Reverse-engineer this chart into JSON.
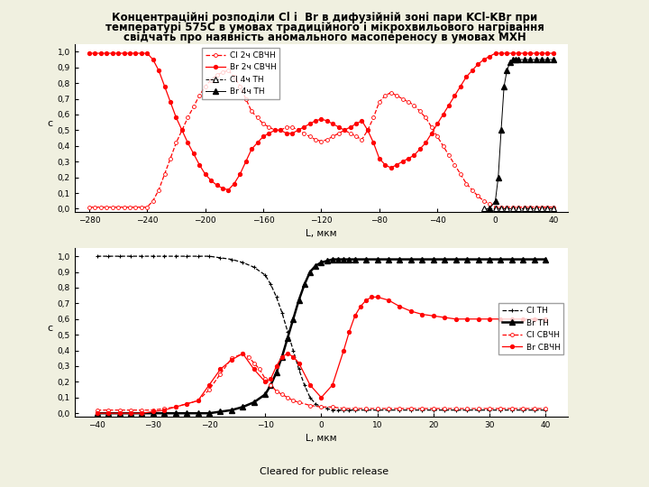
{
  "title_line1": "Концентраційні розподіли Cl і  Br в дифузійній зоні пари KCl-KBr при",
  "title_line2": "температурі 575С в умовах традиційного і мікрохвильового нагрівання",
  "title_line3": "свідчать про наявність аномального масопереносу в умовах МХН",
  "background_color": "#f0f0e0",
  "plot_bg": "#ffffff",
  "footer": "Cleared for public release",
  "plot1": {
    "xlabel": "L, мкм",
    "ylabel": "c",
    "xlim": [
      -290,
      50
    ],
    "ylim": [
      -0.02,
      1.05
    ],
    "xticks": [
      -280,
      -240,
      -200,
      -160,
      -120,
      -80,
      -40,
      0,
      40
    ],
    "yticks": [
      0.0,
      0.1,
      0.2,
      0.3,
      0.4,
      0.5,
      0.6,
      0.7,
      0.8,
      0.9,
      1.0
    ],
    "yticklabels": [
      "0,0",
      "0,1",
      "0,2",
      "0,3",
      "0,4",
      "0,5 -",
      "0,6",
      "0,7",
      "0,8",
      "0,9 -",
      "1,0"
    ],
    "cl_svch_x": [
      -280,
      -276,
      -272,
      -268,
      -264,
      -260,
      -256,
      -252,
      -248,
      -244,
      -240,
      -236,
      -232,
      -228,
      -224,
      -220,
      -216,
      -212,
      -208,
      -204,
      -200,
      -196,
      -192,
      -188,
      -184,
      -180,
      -176,
      -172,
      -168,
      -164,
      -160,
      -156,
      -152,
      -148,
      -144,
      -140,
      -136,
      -132,
      -128,
      -124,
      -120,
      -116,
      -112,
      -108,
      -104,
      -100,
      -96,
      -92,
      -88,
      -84,
      -80,
      -76,
      -72,
      -68,
      -64,
      -60,
      -56,
      -52,
      -48,
      -44,
      -40,
      -36,
      -32,
      -28,
      -24,
      -20,
      -16,
      -12,
      -8,
      -4,
      0,
      4,
      8,
      12,
      16,
      20,
      24,
      28,
      32,
      36,
      40
    ],
    "cl_svch_y": [
      0.01,
      0.01,
      0.01,
      0.01,
      0.01,
      0.01,
      0.01,
      0.01,
      0.01,
      0.01,
      0.01,
      0.05,
      0.12,
      0.22,
      0.32,
      0.42,
      0.5,
      0.58,
      0.65,
      0.72,
      0.78,
      0.82,
      0.85,
      0.87,
      0.88,
      0.84,
      0.78,
      0.7,
      0.62,
      0.58,
      0.54,
      0.52,
      0.5,
      0.5,
      0.52,
      0.52,
      0.5,
      0.48,
      0.46,
      0.44,
      0.43,
      0.44,
      0.46,
      0.48,
      0.5,
      0.48,
      0.46,
      0.44,
      0.5,
      0.58,
      0.68,
      0.72,
      0.74,
      0.72,
      0.7,
      0.68,
      0.66,
      0.62,
      0.58,
      0.52,
      0.46,
      0.4,
      0.34,
      0.28,
      0.22,
      0.16,
      0.12,
      0.08,
      0.05,
      0.03,
      0.01,
      0.01,
      0.01,
      0.01,
      0.01,
      0.01,
      0.01,
      0.01,
      0.01,
      0.01,
      0.01
    ],
    "br_svch_x": [
      -280,
      -276,
      -272,
      -268,
      -264,
      -260,
      -256,
      -252,
      -248,
      -244,
      -240,
      -236,
      -232,
      -228,
      -224,
      -220,
      -216,
      -212,
      -208,
      -204,
      -200,
      -196,
      -192,
      -188,
      -184,
      -180,
      -176,
      -172,
      -168,
      -164,
      -160,
      -156,
      -152,
      -148,
      -144,
      -140,
      -136,
      -132,
      -128,
      -124,
      -120,
      -116,
      -112,
      -108,
      -104,
      -100,
      -96,
      -92,
      -88,
      -84,
      -80,
      -76,
      -72,
      -68,
      -64,
      -60,
      -56,
      -52,
      -48,
      -44,
      -40,
      -36,
      -32,
      -28,
      -24,
      -20,
      -16,
      -12,
      -8,
      -4,
      0,
      4,
      8,
      12,
      16,
      20,
      24,
      28,
      32,
      36,
      40
    ],
    "br_svch_y": [
      0.99,
      0.99,
      0.99,
      0.99,
      0.99,
      0.99,
      0.99,
      0.99,
      0.99,
      0.99,
      0.99,
      0.95,
      0.88,
      0.78,
      0.68,
      0.58,
      0.5,
      0.42,
      0.35,
      0.28,
      0.22,
      0.18,
      0.15,
      0.13,
      0.12,
      0.16,
      0.22,
      0.3,
      0.38,
      0.42,
      0.46,
      0.48,
      0.5,
      0.5,
      0.48,
      0.48,
      0.5,
      0.52,
      0.54,
      0.56,
      0.57,
      0.56,
      0.54,
      0.52,
      0.5,
      0.52,
      0.54,
      0.56,
      0.5,
      0.42,
      0.32,
      0.28,
      0.26,
      0.28,
      0.3,
      0.32,
      0.34,
      0.38,
      0.42,
      0.48,
      0.54,
      0.6,
      0.66,
      0.72,
      0.78,
      0.84,
      0.88,
      0.92,
      0.95,
      0.97,
      0.99,
      0.99,
      0.99,
      0.99,
      0.99,
      0.99,
      0.99,
      0.99,
      0.99,
      0.99,
      0.99
    ],
    "cl_th_x": [
      -8,
      -4,
      0,
      4,
      8,
      12,
      16,
      20,
      24,
      28,
      32,
      36,
      40
    ],
    "cl_th_y": [
      0.0,
      0.0,
      0.0,
      0.0,
      0.0,
      0.0,
      0.0,
      0.0,
      0.0,
      0.0,
      0.0,
      0.0,
      0.0
    ],
    "br_th_x": [
      -4,
      0,
      2,
      4,
      6,
      8,
      10,
      12,
      14,
      16,
      20,
      24,
      28,
      32,
      36,
      40
    ],
    "br_th_y": [
      0.0,
      0.05,
      0.2,
      0.5,
      0.78,
      0.88,
      0.93,
      0.95,
      0.95,
      0.95,
      0.95,
      0.95,
      0.95,
      0.95,
      0.95,
      0.95
    ],
    "legend": [
      "Cl 2ч СВЧН",
      "Br 2ч СВЧН",
      "Cl 4ч ТН",
      "Br 4ч ТН"
    ]
  },
  "plot2": {
    "xlabel": "L, мкм",
    "ylabel": "c",
    "xlim": [
      -44,
      44
    ],
    "ylim": [
      -0.02,
      1.05
    ],
    "xticks": [
      -40,
      -30,
      -20,
      -10,
      0,
      10,
      20,
      30,
      40
    ],
    "yticks": [
      0.0,
      0.1,
      0.2,
      0.3,
      0.4,
      0.5,
      0.6,
      0.7,
      0.8,
      0.9,
      1.0
    ],
    "yticklabels": [
      "0,0",
      "0,1",
      "0,2",
      "0,3",
      "0,4",
      "0,5",
      "0,6",
      "0,7",
      "0,8",
      "0,9",
      "1,0"
    ],
    "cl_th_x": [
      -40,
      -38,
      -36,
      -34,
      -32,
      -30,
      -28,
      -26,
      -24,
      -22,
      -20,
      -18,
      -16,
      -14,
      -12,
      -10,
      -9,
      -8,
      -7,
      -6,
      -5,
      -4,
      -3,
      -2,
      -1,
      0,
      1,
      2,
      3,
      4,
      5,
      6,
      8,
      10,
      12,
      14,
      16,
      18,
      20,
      22,
      24,
      26,
      28,
      30,
      32,
      34,
      36,
      38,
      40
    ],
    "cl_th_y": [
      1.0,
      1.0,
      1.0,
      1.0,
      1.0,
      1.0,
      1.0,
      1.0,
      1.0,
      1.0,
      1.0,
      0.99,
      0.98,
      0.96,
      0.93,
      0.88,
      0.82,
      0.74,
      0.64,
      0.52,
      0.4,
      0.28,
      0.18,
      0.1,
      0.06,
      0.04,
      0.03,
      0.02,
      0.02,
      0.02,
      0.02,
      0.02,
      0.02,
      0.02,
      0.02,
      0.02,
      0.02,
      0.02,
      0.02,
      0.02,
      0.02,
      0.02,
      0.02,
      0.02,
      0.02,
      0.02,
      0.02,
      0.02,
      0.02
    ],
    "br_th_x": [
      -40,
      -38,
      -36,
      -34,
      -32,
      -30,
      -28,
      -26,
      -24,
      -22,
      -20,
      -18,
      -16,
      -14,
      -12,
      -10,
      -9,
      -8,
      -7,
      -6,
      -5,
      -4,
      -3,
      -2,
      -1,
      0,
      1,
      2,
      3,
      4,
      5,
      6,
      8,
      10,
      12,
      14,
      16,
      18,
      20,
      22,
      24,
      26,
      28,
      30,
      32,
      34,
      36,
      38,
      40
    ],
    "br_th_y": [
      0.0,
      0.0,
      0.0,
      0.0,
      0.0,
      0.0,
      0.0,
      0.0,
      0.0,
      0.0,
      0.0,
      0.01,
      0.02,
      0.04,
      0.07,
      0.12,
      0.18,
      0.26,
      0.36,
      0.48,
      0.6,
      0.72,
      0.82,
      0.9,
      0.94,
      0.96,
      0.97,
      0.98,
      0.98,
      0.98,
      0.98,
      0.98,
      0.98,
      0.98,
      0.98,
      0.98,
      0.98,
      0.98,
      0.98,
      0.98,
      0.98,
      0.98,
      0.98,
      0.98,
      0.98,
      0.98,
      0.98,
      0.98,
      0.98
    ],
    "cl_svch_x": [
      -40,
      -38,
      -36,
      -34,
      -32,
      -30,
      -28,
      -26,
      -24,
      -22,
      -20,
      -18,
      -16,
      -14,
      -13,
      -12,
      -11,
      -10,
      -9,
      -8,
      -7,
      -6,
      -5,
      -4,
      -2,
      0,
      2,
      4,
      6,
      8,
      10,
      12,
      14,
      16,
      18,
      20,
      22,
      24,
      26,
      28,
      30,
      32,
      34,
      36,
      38,
      40
    ],
    "cl_svch_y": [
      0.02,
      0.02,
      0.02,
      0.02,
      0.02,
      0.02,
      0.03,
      0.04,
      0.06,
      0.08,
      0.15,
      0.25,
      0.35,
      0.38,
      0.36,
      0.32,
      0.28,
      0.22,
      0.18,
      0.14,
      0.12,
      0.1,
      0.08,
      0.07,
      0.05,
      0.04,
      0.04,
      0.03,
      0.03,
      0.03,
      0.03,
      0.03,
      0.03,
      0.03,
      0.03,
      0.03,
      0.03,
      0.03,
      0.03,
      0.03,
      0.03,
      0.03,
      0.03,
      0.03,
      0.03,
      0.03
    ],
    "br_svch_x": [
      -40,
      -38,
      -36,
      -34,
      -32,
      -30,
      -28,
      -26,
      -24,
      -22,
      -20,
      -18,
      -16,
      -14,
      -12,
      -10,
      -9,
      -8,
      -7,
      -6,
      -5,
      -4,
      -2,
      0,
      2,
      4,
      5,
      6,
      7,
      8,
      9,
      10,
      12,
      14,
      16,
      18,
      20,
      22,
      24,
      26,
      28,
      30,
      32,
      34,
      36,
      38,
      40
    ],
    "br_svch_y": [
      0.0,
      0.0,
      0.0,
      0.0,
      0.0,
      0.01,
      0.02,
      0.04,
      0.06,
      0.08,
      0.18,
      0.28,
      0.34,
      0.38,
      0.28,
      0.2,
      0.22,
      0.3,
      0.36,
      0.38,
      0.36,
      0.32,
      0.18,
      0.1,
      0.18,
      0.4,
      0.52,
      0.62,
      0.68,
      0.72,
      0.74,
      0.74,
      0.72,
      0.68,
      0.65,
      0.63,
      0.62,
      0.61,
      0.6,
      0.6,
      0.6,
      0.6,
      0.6,
      0.6,
      0.6,
      0.6,
      0.6
    ],
    "legend": [
      "Cl ТН",
      "Br ТН",
      "Cl СВЧН",
      "Br СВЧН"
    ]
  }
}
